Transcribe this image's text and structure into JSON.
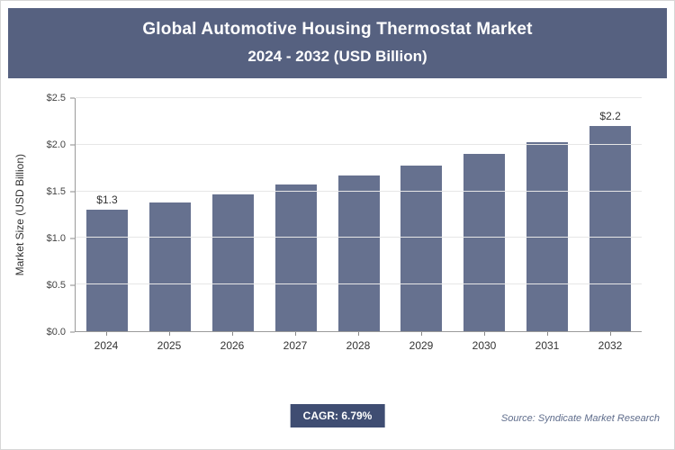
{
  "header": {
    "title_line1": "Global Automotive Housing Thermostat Market",
    "title_line2": "2024 - 2032 (USD Billion)"
  },
  "chart_data": {
    "type": "bar",
    "title": "Global Automotive Housing Thermostat Market 2024 - 2032 (USD Billion)",
    "categories": [
      "2024",
      "2025",
      "2026",
      "2027",
      "2028",
      "2029",
      "2030",
      "2031",
      "2032"
    ],
    "values": [
      1.3,
      1.38,
      1.47,
      1.57,
      1.67,
      1.78,
      1.9,
      2.03,
      2.2
    ],
    "xlabel": "",
    "ylabel": "Market Size (USD Billion)",
    "ylim": [
      0,
      2.5
    ],
    "yticks": [
      "$0.0",
      "$0.5",
      "$1.0",
      "$1.5",
      "$2.0",
      "$2.5"
    ],
    "grid": true,
    "legend": "none",
    "annotations": [
      {
        "category": "2024",
        "text": "$1.3"
      },
      {
        "category": "2032",
        "text": "$2.2"
      }
    ]
  },
  "footer": {
    "cagr_label": "CAGR: 6.79%",
    "source": "Source: Syndicate Market Research"
  },
  "colors": {
    "header_bg": "#566180",
    "badge_bg": "#3f4d72",
    "bar": "#66718f"
  }
}
